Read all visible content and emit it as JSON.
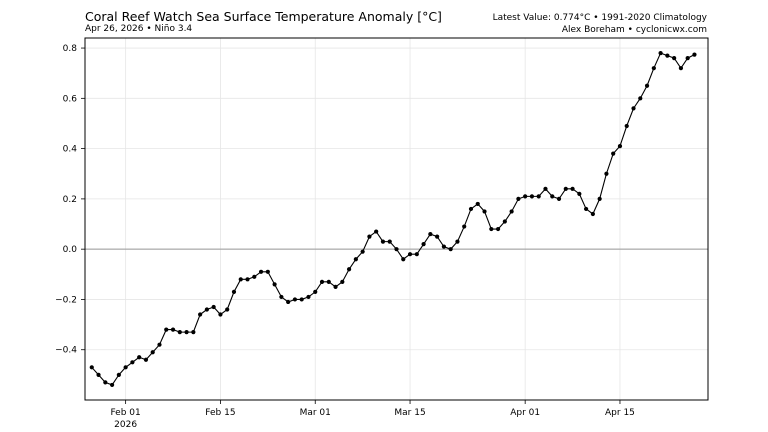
{
  "header": {
    "title": "Coral Reef Watch Sea Surface Temperature Anomaly [°C]",
    "subtitle": "Apr 26, 2026 • Niño 3.4",
    "latest": "Latest Value: 0.774°C • 1991-2020 Climatology",
    "credit": "Alex Boreham • cyclonicwx.com"
  },
  "chart_data": {
    "type": "line",
    "title": "Coral Reef Watch Sea Surface Temperature Anomaly [°C]",
    "xlabel": "",
    "ylabel": "",
    "x_start": "2026-01-27",
    "x_end": "2026-04-26",
    "xlim": [
      "2026-01-26",
      "2026-04-28"
    ],
    "ylim": [
      -0.6,
      0.84
    ],
    "yticks": [
      -0.4,
      -0.2,
      0.0,
      0.2,
      0.4,
      0.6,
      0.8
    ],
    "ytick_labels": [
      "−0.4",
      "−0.2",
      "0.0",
      "0.2",
      "0.4",
      "0.6",
      "0.8"
    ],
    "xticks": [
      {
        "date": "2026-02-01",
        "label": "Feb 01",
        "sublabel": "2026"
      },
      {
        "date": "2026-02-15",
        "label": "Feb 15",
        "sublabel": ""
      },
      {
        "date": "2026-03-01",
        "label": "Mar 01",
        "sublabel": ""
      },
      {
        "date": "2026-03-15",
        "label": "Mar 15",
        "sublabel": ""
      },
      {
        "date": "2026-04-01",
        "label": "Apr 01",
        "sublabel": ""
      },
      {
        "date": "2026-04-15",
        "label": "Apr 15",
        "sublabel": ""
      }
    ],
    "grid": true,
    "zero_line": true,
    "marker": "circle",
    "line_color": "#000000",
    "series": [
      {
        "values": [
          -0.47,
          -0.5,
          -0.53,
          -0.54,
          -0.5,
          -0.47,
          -0.45,
          -0.43,
          -0.44,
          -0.41,
          -0.38,
          -0.32,
          -0.32,
          -0.33,
          -0.33,
          -0.33,
          -0.26,
          -0.24,
          -0.23,
          -0.26,
          -0.24,
          -0.17,
          -0.12,
          -0.12,
          -0.11,
          -0.09,
          -0.09,
          -0.14,
          -0.19,
          -0.21,
          -0.2,
          -0.2,
          -0.19,
          -0.17,
          -0.13,
          -0.13,
          -0.15,
          -0.13,
          -0.08,
          -0.04,
          -0.01,
          0.05,
          0.07,
          0.03,
          0.03,
          0.0,
          -0.04,
          -0.02,
          -0.02,
          0.02,
          0.06,
          0.05,
          0.01,
          0.0,
          0.03,
          0.09,
          0.16,
          0.18,
          0.15,
          0.08,
          0.08,
          0.11,
          0.15,
          0.2,
          0.21,
          0.21,
          0.21,
          0.24,
          0.21,
          0.2,
          0.24,
          0.24,
          0.22,
          0.16,
          0.14,
          0.2,
          0.3,
          0.38,
          0.41,
          0.49,
          0.56,
          0.6,
          0.65,
          0.72,
          0.78,
          0.77,
          0.76,
          0.72,
          0.76,
          0.774
        ]
      }
    ]
  }
}
